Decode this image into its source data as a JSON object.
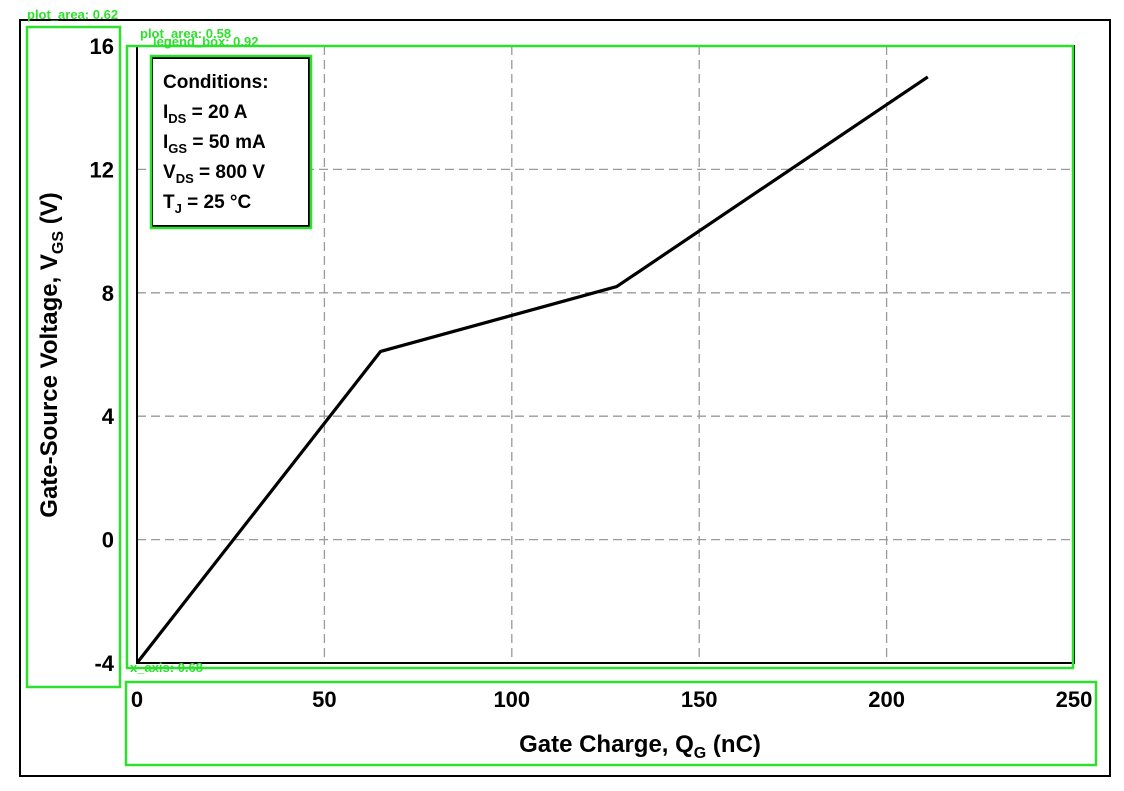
{
  "chart_data": {
    "type": "line",
    "xlabel": {
      "main": "Gate Charge, Q",
      "sub": "G",
      "unit": " (nC)"
    },
    "ylabel": {
      "main": "Gate-Source Voltage, V",
      "sub": "GS",
      "unit": " (V)"
    },
    "xlim": [
      0,
      250
    ],
    "ylim": [
      -4,
      16
    ],
    "xticks": [
      0,
      50,
      100,
      150,
      200,
      250
    ],
    "yticks": [
      -4,
      0,
      4,
      8,
      12,
      16
    ],
    "grid": true,
    "series": [
      {
        "x": [
          0,
          65,
          128,
          211
        ],
        "y": [
          -4,
          6.1,
          8.2,
          15
        ]
      }
    ],
    "legend": {
      "title": "Conditions:",
      "lines": [
        {
          "main": "I",
          "sub": "DS",
          "rest": " = 20 A"
        },
        {
          "main": "I",
          "sub": "GS",
          "rest": " = 50 mA"
        },
        {
          "main": "V",
          "sub": "DS",
          "rest": " = 800 V"
        },
        {
          "main": "T",
          "sub": "J",
          "rest": " = 25 °C"
        }
      ]
    },
    "line_color": "#000000",
    "grid_color": "#9a9a9a"
  },
  "overlays": {
    "color": "#2ee02e",
    "labels": {
      "y_axis": "plot_area: 0.62",
      "plot": "plot_area: 0.58",
      "legend": "legend_box: 0.92",
      "x_axis": "x_axis: 0.68"
    }
  }
}
